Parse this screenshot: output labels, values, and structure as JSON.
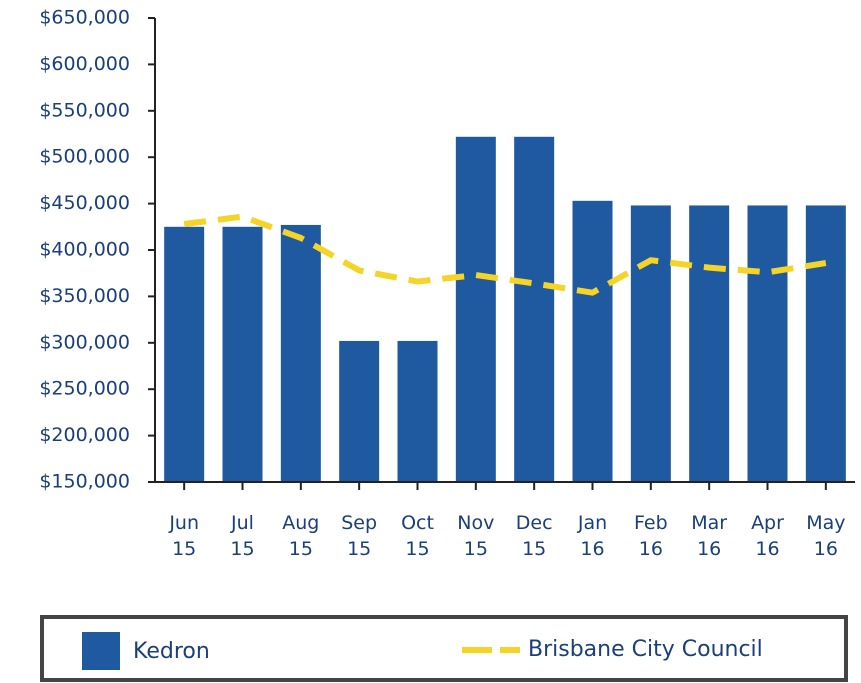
{
  "chart_data": {
    "type": "bar",
    "categories": [
      "Jun 15",
      "Jul 15",
      "Aug 15",
      "Sep 15",
      "Oct 15",
      "Nov 15",
      "Dec 15",
      "Jan 16",
      "Feb 16",
      "Mar 16",
      "Apr 16",
      "May 16"
    ],
    "series": [
      {
        "name": "Kedron",
        "type": "bar",
        "color": "#1f5aa0",
        "values": [
          425000,
          425000,
          427000,
          302000,
          302000,
          522000,
          522000,
          453000,
          448000,
          448000,
          448000,
          448000
        ]
      },
      {
        "name": "Brisbane City Council",
        "type": "line",
        "color": "#f5d327",
        "values": [
          428000,
          436000,
          413000,
          378000,
          366000,
          373000,
          364000,
          354000,
          389000,
          381000,
          376000,
          386000
        ]
      }
    ],
    "ylim": [
      150000,
      650000
    ],
    "yticks": [
      {
        "value": 150000,
        "label": "$150,000"
      },
      {
        "value": 200000,
        "label": "$200,000"
      },
      {
        "value": 250000,
        "label": "$250,000"
      },
      {
        "value": 300000,
        "label": "$300,000"
      },
      {
        "value": 350000,
        "label": "$350,000"
      },
      {
        "value": 400000,
        "label": "$400,000"
      },
      {
        "value": 450000,
        "label": "$450,000"
      },
      {
        "value": 500000,
        "label": "$500,000"
      },
      {
        "value": 550000,
        "label": "$550,000"
      },
      {
        "value": 600000,
        "label": "$600,000"
      },
      {
        "value": 650000,
        "label": "$650,000"
      }
    ],
    "legend": "bottom"
  }
}
